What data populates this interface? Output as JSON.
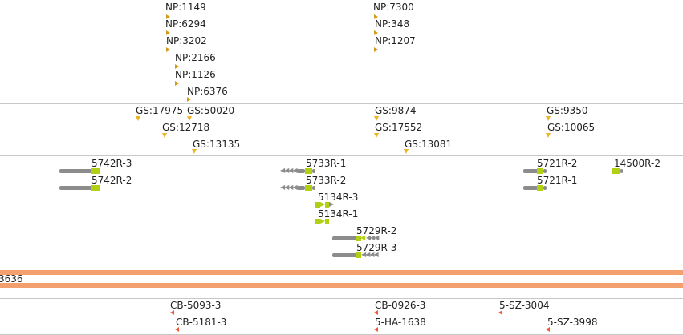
{
  "tracks": {
    "np": {
      "labels": [
        "NP:1149",
        "NP:6294",
        "NP:3202",
        "NP:2166",
        "NP:1126",
        "NP:6376",
        "NP:7300",
        "NP:348",
        "NP:1207"
      ],
      "color": "#d39b1e"
    },
    "gs": {
      "labels": [
        "GS:17975",
        "GS:50020",
        "GS:12718",
        "GS:13135",
        "GS:9874",
        "GS:17552",
        "GS:13081",
        "GS:9350",
        "GS:10065"
      ],
      "color": "#f0b323"
    },
    "genes": {
      "labels": [
        "5742R-3",
        "5742R-2",
        "5733R-1",
        "5733R-2",
        "5134R-3",
        "5134R-1",
        "5729R-2",
        "5729R-3",
        "5721R-2",
        "5721R-1",
        "14500R-2"
      ],
      "body_color": "#8c8c8c",
      "exon_color": "#b3cf13"
    },
    "contig": {
      "label": "3636",
      "color": "#f4a06e"
    },
    "cb": {
      "labels": [
        "CB-5093-3",
        "CB-5181-3",
        "CB-0926-3",
        "5-HA-1638",
        "5-SZ-3004",
        "5-SZ-3998"
      ],
      "color": "#f05a3a"
    }
  }
}
